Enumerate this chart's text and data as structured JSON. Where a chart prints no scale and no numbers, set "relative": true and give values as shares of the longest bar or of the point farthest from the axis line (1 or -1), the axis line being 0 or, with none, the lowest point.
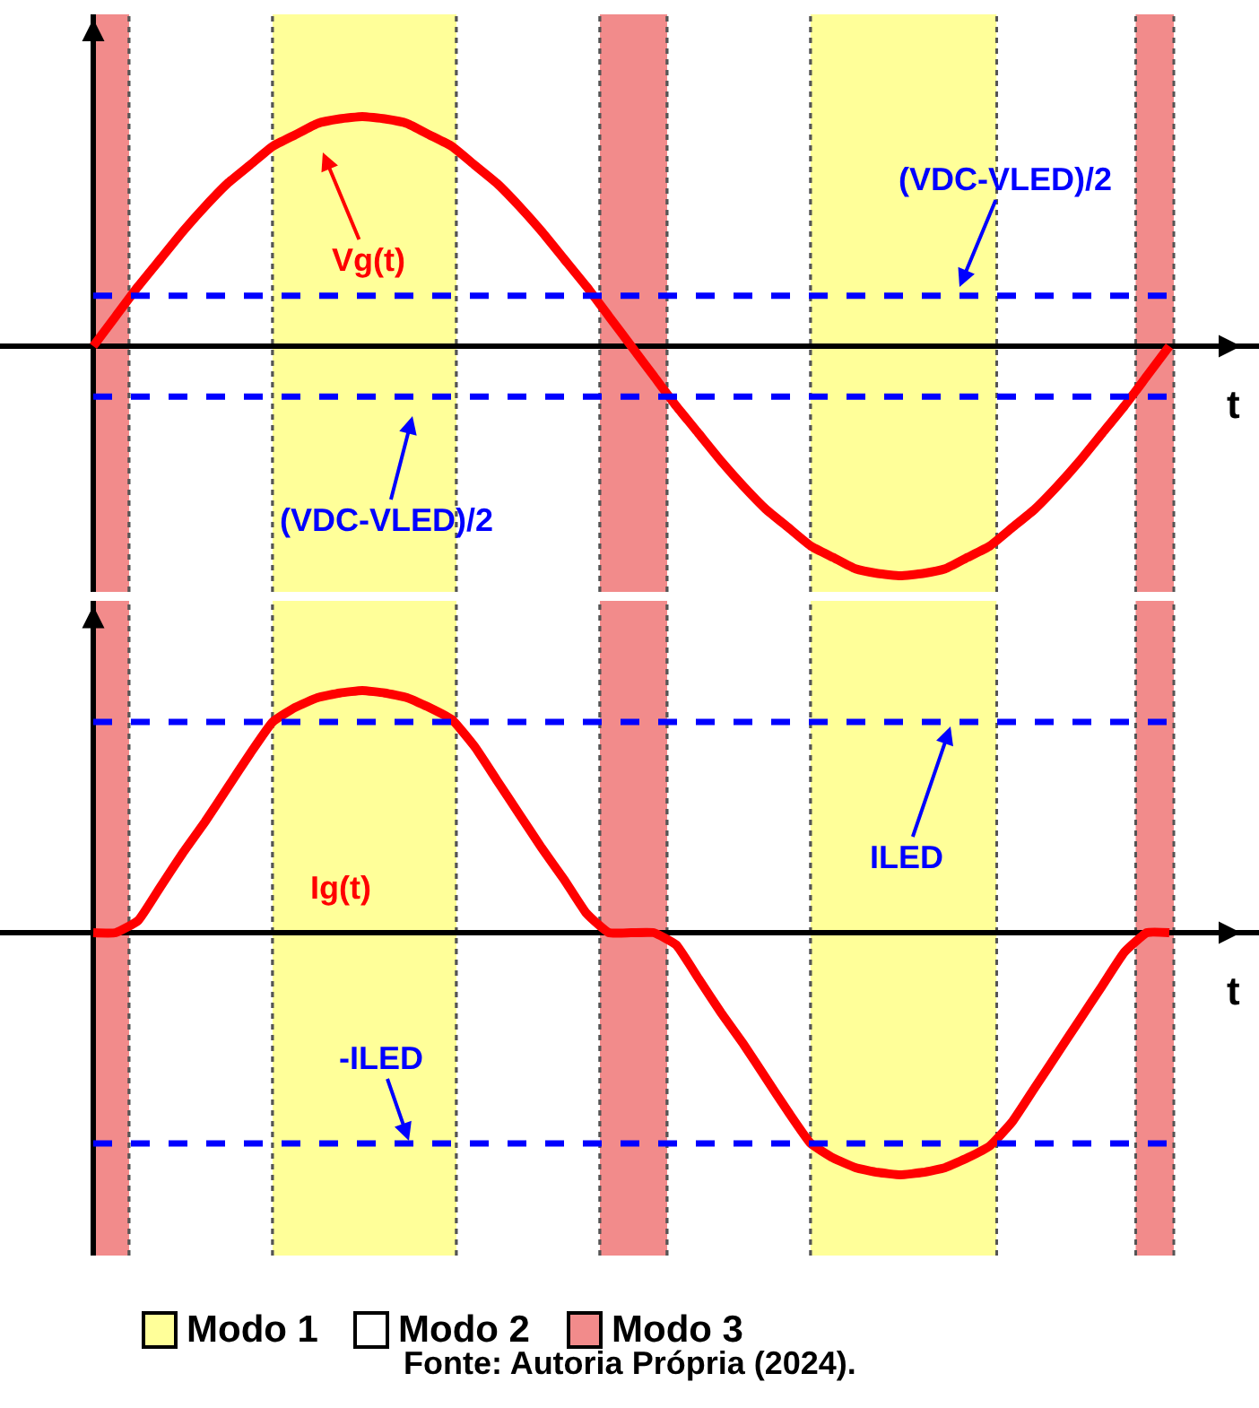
{
  "chart_data": [
    {
      "type": "line",
      "relative": true,
      "xlabel": "t",
      "grid": "x",
      "tick_labels": false,
      "marker": "none",
      "categories": [
        null,
        null,
        null,
        null,
        null,
        null,
        null,
        null,
        null,
        null,
        null,
        null,
        null,
        null,
        null,
        null,
        null,
        null,
        null,
        null,
        null,
        null,
        null,
        null,
        null,
        null,
        null,
        null,
        null,
        null,
        null,
        null,
        null,
        null,
        null,
        null,
        null,
        null,
        null,
        null,
        null,
        null,
        null,
        null,
        null,
        null,
        null,
        null,
        null
      ],
      "series": [
        {
          "name": "Vg(t)",
          "color": "#ff0000",
          "line_style": "solid",
          "values": [
            0,
            0.13,
            0.26,
            0.38,
            0.5,
            0.61,
            0.71,
            0.79,
            0.87,
            0.92,
            0.97,
            0.99,
            1,
            0.99,
            0.97,
            0.92,
            0.87,
            0.79,
            0.71,
            0.61,
            0.5,
            0.38,
            0.26,
            0.13,
            0,
            -0.13,
            -0.26,
            -0.38,
            -0.5,
            -0.61,
            -0.71,
            -0.79,
            -0.87,
            -0.92,
            -0.97,
            -0.99,
            -1,
            -0.99,
            -0.97,
            -0.92,
            -0.87,
            -0.79,
            -0.71,
            -0.61,
            -0.5,
            -0.38,
            -0.26,
            -0.13,
            0
          ]
        }
      ],
      "ref_lines": [
        {
          "axis": "y",
          "value": 0.22,
          "label": "(VDC-VLED)/2",
          "color": "#0000ff",
          "line_style": "dashed"
        },
        {
          "axis": "y",
          "value": -0.22,
          "label": "(VDC-VLED)/2",
          "color": "#0000ff",
          "line_style": "dashed"
        }
      ]
    },
    {
      "type": "line",
      "relative": true,
      "xlabel": "t",
      "grid": "x",
      "tick_labels": false,
      "marker": "none",
      "categories": [
        null,
        null,
        null,
        null,
        null,
        null,
        null,
        null,
        null,
        null,
        null,
        null,
        null,
        null,
        null,
        null,
        null,
        null,
        null,
        null,
        null,
        null,
        null,
        null,
        null,
        null,
        null,
        null,
        null,
        null,
        null,
        null,
        null,
        null,
        null,
        null,
        null,
        null,
        null,
        null,
        null,
        null,
        null,
        null,
        null,
        null,
        null,
        null,
        null
      ],
      "series": [
        {
          "name": "Ig(t)",
          "color": "#ff0000",
          "line_style": "solid",
          "values": [
            0,
            0,
            0.05,
            0.19,
            0.33,
            0.46,
            0.6,
            0.74,
            0.87,
            0.93,
            0.97,
            0.99,
            1,
            0.99,
            0.97,
            0.93,
            0.88,
            0.77,
            0.63,
            0.49,
            0.35,
            0.22,
            0.08,
            0,
            0,
            0,
            -0.05,
            -0.19,
            -0.33,
            -0.46,
            -0.6,
            -0.74,
            -0.87,
            -0.93,
            -0.97,
            -0.99,
            -1,
            -0.99,
            -0.97,
            -0.93,
            -0.88,
            -0.78,
            -0.64,
            -0.5,
            -0.36,
            -0.22,
            -0.08,
            0,
            0
          ]
        }
      ],
      "ref_lines": [
        {
          "axis": "y",
          "value": 0.87,
          "label": "ILED",
          "color": "#0000ff",
          "line_style": "dashed"
        },
        {
          "axis": "y",
          "value": -0.87,
          "label": "-ILED",
          "color": "#0000ff",
          "line_style": "dashed"
        }
      ],
      "annotations": [
        "Modo 1",
        "Modo 2",
        "Modo 3",
        "Fonte: Autoria Própria (2024)."
      ]
    }
  ]
}
